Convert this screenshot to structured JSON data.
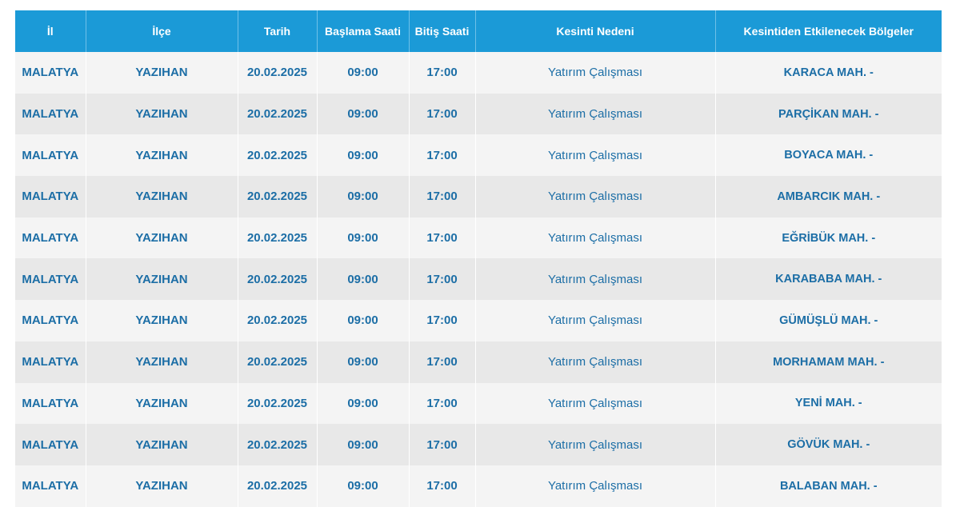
{
  "colors": {
    "header_bg": "#1b9ad7",
    "text": "#1c6ea6",
    "row_light": "#f4f4f4",
    "row_dark": "#e8e8e8"
  },
  "headers": [
    "İl",
    "İlçe",
    "Tarih",
    "Başlama Saati",
    "Bitiş Saati",
    "Kesinti Nedeni",
    "Kesintiden Etkilenecek Bölgeler"
  ],
  "rows": [
    [
      "MALATYA",
      "YAZIHAN",
      "20.02.2025",
      "09:00",
      "17:00",
      "Yatırım Çalışması",
      "KARACA MAH. -"
    ],
    [
      "MALATYA",
      "YAZIHAN",
      "20.02.2025",
      "09:00",
      "17:00",
      "Yatırım Çalışması",
      "PARÇİKAN MAH. -"
    ],
    [
      "MALATYA",
      "YAZIHAN",
      "20.02.2025",
      "09:00",
      "17:00",
      "Yatırım Çalışması",
      "BOYACA MAH. -"
    ],
    [
      "MALATYA",
      "YAZIHAN",
      "20.02.2025",
      "09:00",
      "17:00",
      "Yatırım Çalışması",
      "AMBARCIK MAH. -"
    ],
    [
      "MALATYA",
      "YAZIHAN",
      "20.02.2025",
      "09:00",
      "17:00",
      "Yatırım Çalışması",
      "EĞRİBÜK MAH. -"
    ],
    [
      "MALATYA",
      "YAZIHAN",
      "20.02.2025",
      "09:00",
      "17:00",
      "Yatırım Çalışması",
      "KARABABA MAH. -"
    ],
    [
      "MALATYA",
      "YAZIHAN",
      "20.02.2025",
      "09:00",
      "17:00",
      "Yatırım Çalışması",
      "GÜMÜŞLÜ MAH. -"
    ],
    [
      "MALATYA",
      "YAZIHAN",
      "20.02.2025",
      "09:00",
      "17:00",
      "Yatırım Çalışması",
      "MORHAMAM MAH. -"
    ],
    [
      "MALATYA",
      "YAZIHAN",
      "20.02.2025",
      "09:00",
      "17:00",
      "Yatırım Çalışması",
      "YENİ MAH. -"
    ],
    [
      "MALATYA",
      "YAZIHAN",
      "20.02.2025",
      "09:00",
      "17:00",
      "Yatırım Çalışması",
      "GÖVÜK MAH. -"
    ],
    [
      "MALATYA",
      "YAZIHAN",
      "20.02.2025",
      "09:00",
      "17:00",
      "Yatırım Çalışması",
      "BALABAN MAH. -"
    ]
  ]
}
